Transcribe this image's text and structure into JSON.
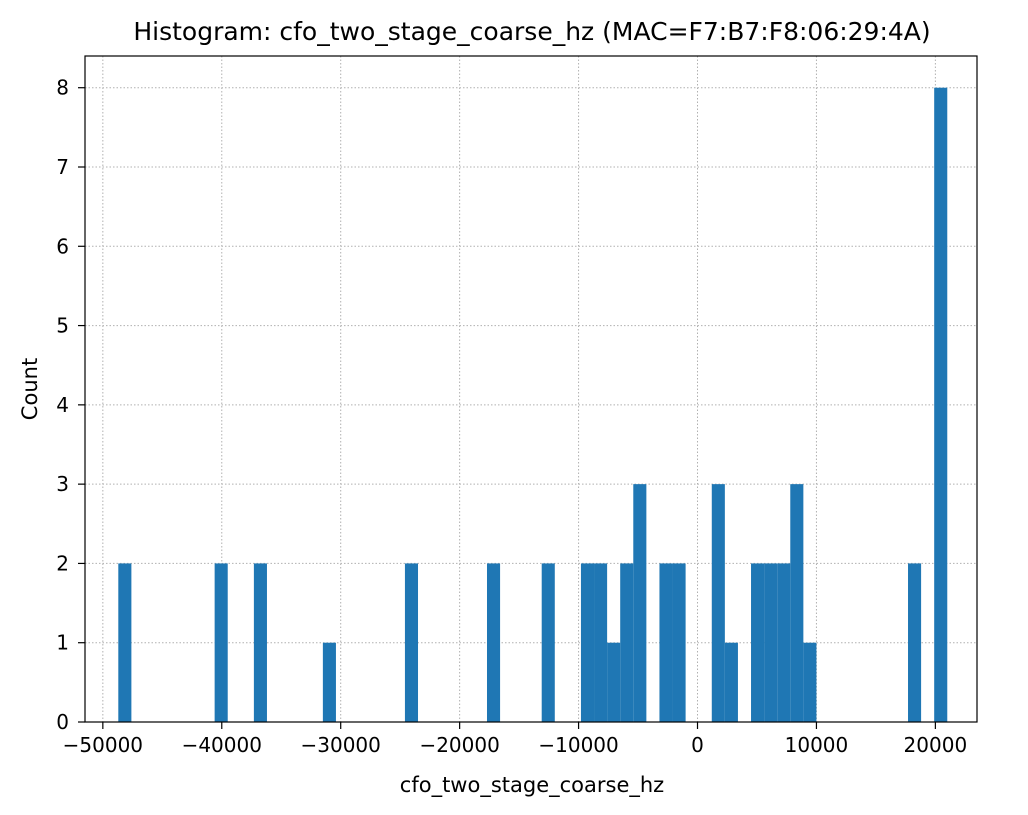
{
  "chart_data": {
    "type": "bar",
    "title": "Histogram: cfo_two_stage_coarse_hz (MAC=F7:B7:F8:06:29:4A)",
    "xlabel": "cfo_two_stage_coarse_hz",
    "ylabel": "Count",
    "xlim": [
      -51500,
      23500
    ],
    "ylim": [
      0,
      8.4
    ],
    "grid": true,
    "grid_style": "dotted",
    "bar_color": "#1f77b4",
    "bin_width": 1100,
    "xticks": [
      -50000,
      -40000,
      -30000,
      -20000,
      -10000,
      0,
      10000,
      20000
    ],
    "xtick_labels": [
      "−50000",
      "−40000",
      "−30000",
      "−20000",
      "−10000",
      "0",
      "10000",
      "20000"
    ],
    "yticks": [
      0,
      1,
      2,
      3,
      4,
      5,
      6,
      7,
      8
    ],
    "ytick_labels": [
      "0",
      "1",
      "2",
      "3",
      "4",
      "5",
      "6",
      "7",
      "8"
    ],
    "bins": [
      {
        "x_start": -48700,
        "x_end": -47600,
        "count": 2
      },
      {
        "x_start": -40600,
        "x_end": -39500,
        "count": 2
      },
      {
        "x_start": -37300,
        "x_end": -36200,
        "count": 2
      },
      {
        "x_start": -31500,
        "x_end": -30400,
        "count": 1
      },
      {
        "x_start": -24600,
        "x_end": -23500,
        "count": 2
      },
      {
        "x_start": -17700,
        "x_end": -16600,
        "count": 2
      },
      {
        "x_start": -13100,
        "x_end": -12000,
        "count": 2
      },
      {
        "x_start": -9800,
        "x_end": -8700,
        "count": 2
      },
      {
        "x_start": -8700,
        "x_end": -7600,
        "count": 2
      },
      {
        "x_start": -7600,
        "x_end": -6500,
        "count": 1
      },
      {
        "x_start": -6500,
        "x_end": -5400,
        "count": 2
      },
      {
        "x_start": -5400,
        "x_end": -4300,
        "count": 3
      },
      {
        "x_start": -3200,
        "x_end": -2100,
        "count": 2
      },
      {
        "x_start": -2100,
        "x_end": -1000,
        "count": 2
      },
      {
        "x_start": 1200,
        "x_end": 2300,
        "count": 3
      },
      {
        "x_start": 2300,
        "x_end": 3400,
        "count": 1
      },
      {
        "x_start": 4500,
        "x_end": 5600,
        "count": 2
      },
      {
        "x_start": 5600,
        "x_end": 6700,
        "count": 2
      },
      {
        "x_start": 6700,
        "x_end": 7800,
        "count": 2
      },
      {
        "x_start": 7800,
        "x_end": 8900,
        "count": 3
      },
      {
        "x_start": 8900,
        "x_end": 10000,
        "count": 1
      },
      {
        "x_start": 17700,
        "x_end": 18800,
        "count": 2
      },
      {
        "x_start": 19900,
        "x_end": 21000,
        "count": 8
      }
    ]
  }
}
